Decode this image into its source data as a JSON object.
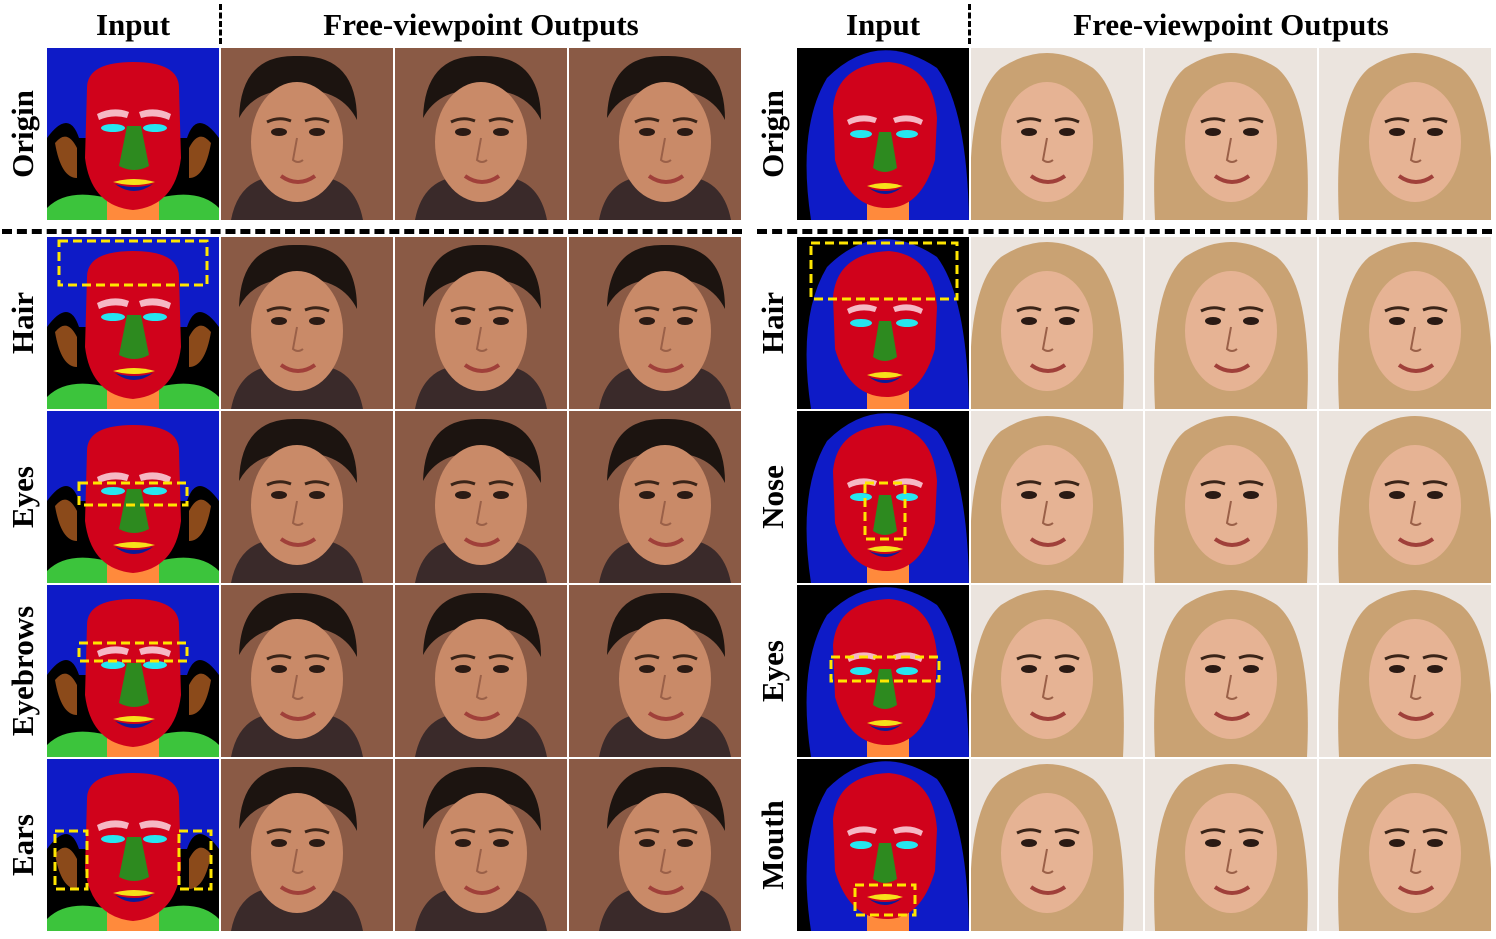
{
  "headers": {
    "input_label": "Input",
    "outputs_label": "Free-viewpoint Outputs"
  },
  "left_panel": {
    "origin_label": "Origin",
    "rows": [
      {
        "label": "Hair",
        "region": "hair"
      },
      {
        "label": "Eyes",
        "region": "eyes"
      },
      {
        "label": "Eyebrows",
        "region": "eyebrows"
      },
      {
        "label": "Ears",
        "region": "ears"
      }
    ]
  },
  "right_panel": {
    "origin_label": "Origin",
    "rows": [
      {
        "label": "Hair",
        "region": "hair"
      },
      {
        "label": "Nose",
        "region": "nose"
      },
      {
        "label": "Eyes",
        "region": "eyes"
      },
      {
        "label": "Mouth",
        "region": "mouth"
      }
    ]
  },
  "colors": {
    "mask_hair": "#0e1bc7",
    "mask_skin": "#d0021b",
    "mask_nose": "#2d8a1f",
    "mask_eyes": "#26e6f0",
    "mask_brows": "#f5b8c4",
    "mask_lip_upper": "#f7e11a",
    "mask_lip_lower": "#0a1b9a",
    "mask_neck": "#ff8a3c",
    "mask_cloth": "#3cc43c",
    "mask_ear": "#8b4a1a",
    "highlight_box": "#ffe600",
    "man_skin": "#c98a68",
    "man_hair": "#1c1410",
    "man_bg": "#8a5a45",
    "woman_skin": "#e6b394",
    "woman_hair": "#c9a273",
    "woman_bg": "#ebe4de"
  }
}
